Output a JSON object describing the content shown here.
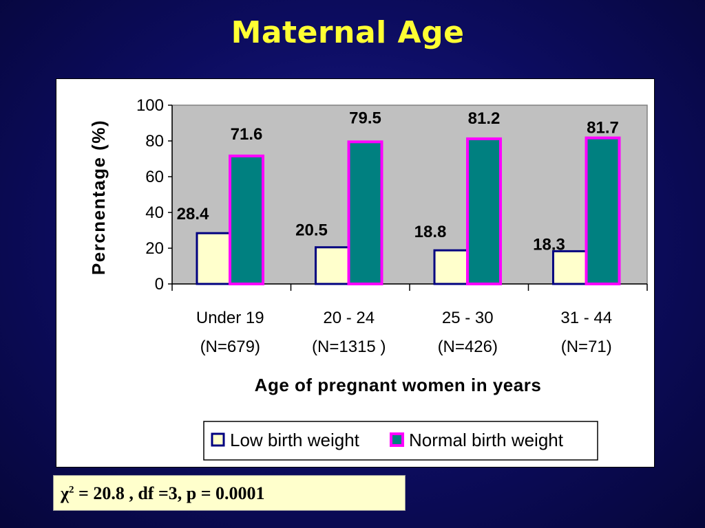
{
  "slide": {
    "title": "Maternal Age"
  },
  "stat": {
    "symbol": "χ",
    "sup": "2",
    "text": " = 20.8 , df =3, p = 0.0001"
  },
  "chart_data": {
    "type": "bar",
    "xlabel": "Age of pregnant women in years",
    "ylabel": "Percnentage  (%)",
    "ylim": [
      0,
      100
    ],
    "yticks": [
      "0",
      "20",
      "40",
      "60",
      "80",
      "100"
    ],
    "categories": [
      {
        "line1": "Under 19",
        "line2": "(N=679)"
      },
      {
        "line1": "20 - 24",
        "line2": "(N=1315 )"
      },
      {
        "line1": "25 - 30",
        "line2": "(N=426)"
      },
      {
        "line1": "31 - 44",
        "line2": "(N=71)"
      }
    ],
    "series": [
      {
        "name": "Low birth weight",
        "values": [
          28.4,
          20.5,
          18.8,
          18.3
        ],
        "labels": [
          "28.4",
          "20.5",
          "18.8",
          "18.3"
        ],
        "fill": "#ffffcc",
        "stroke": "#000080"
      },
      {
        "name": "Normal birth weight",
        "values": [
          71.6,
          79.5,
          81.2,
          81.7
        ],
        "labels": [
          "71.6",
          "79.5",
          "81.2",
          "81.7"
        ],
        "fill": "#008080",
        "stroke": "#ff00ff"
      }
    ],
    "grid": false,
    "plot_background": "#c0c0c0",
    "legend_position": "bottom"
  }
}
